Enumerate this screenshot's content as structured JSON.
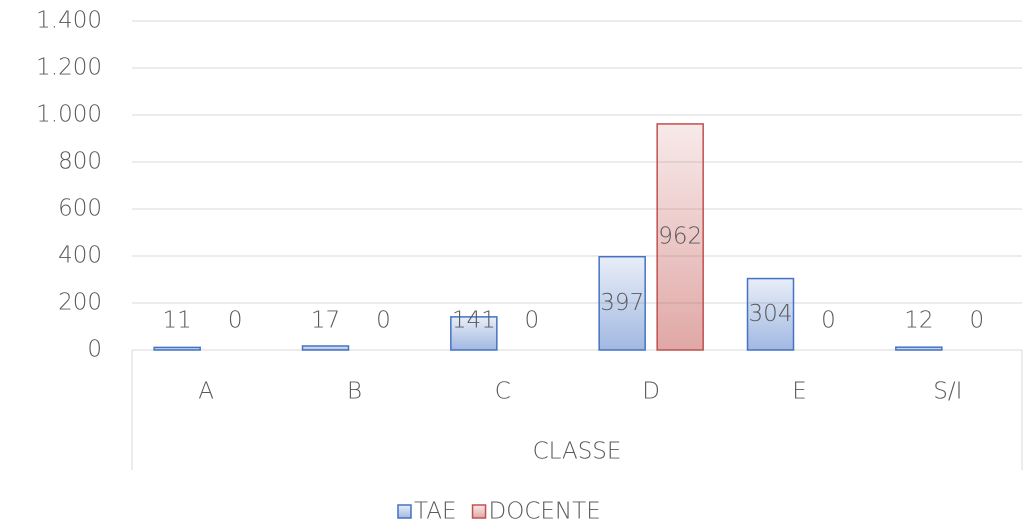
{
  "chart_data": {
    "type": "bar",
    "x_label": "CLASSE",
    "categories": [
      "A",
      "B",
      "C",
      "D",
      "E",
      "S/I"
    ],
    "series": [
      {
        "name": "TAE",
        "color": "#4472c4",
        "values": [
          11,
          17,
          141,
          397,
          304,
          12
        ]
      },
      {
        "name": "DOCENTE",
        "color": "#c0504d",
        "values": [
          0,
          0,
          0,
          962,
          0,
          0
        ]
      }
    ],
    "ylim": [
      0,
      1400
    ],
    "yticks": [
      0,
      200,
      400,
      600,
      800,
      {
        "value": 1000,
        "label": "1.000"
      },
      {
        "value": 1200,
        "label": "1.200"
      },
      {
        "value": 1400,
        "label": "1.400"
      }
    ],
    "grid": true,
    "legend": "bottom"
  }
}
